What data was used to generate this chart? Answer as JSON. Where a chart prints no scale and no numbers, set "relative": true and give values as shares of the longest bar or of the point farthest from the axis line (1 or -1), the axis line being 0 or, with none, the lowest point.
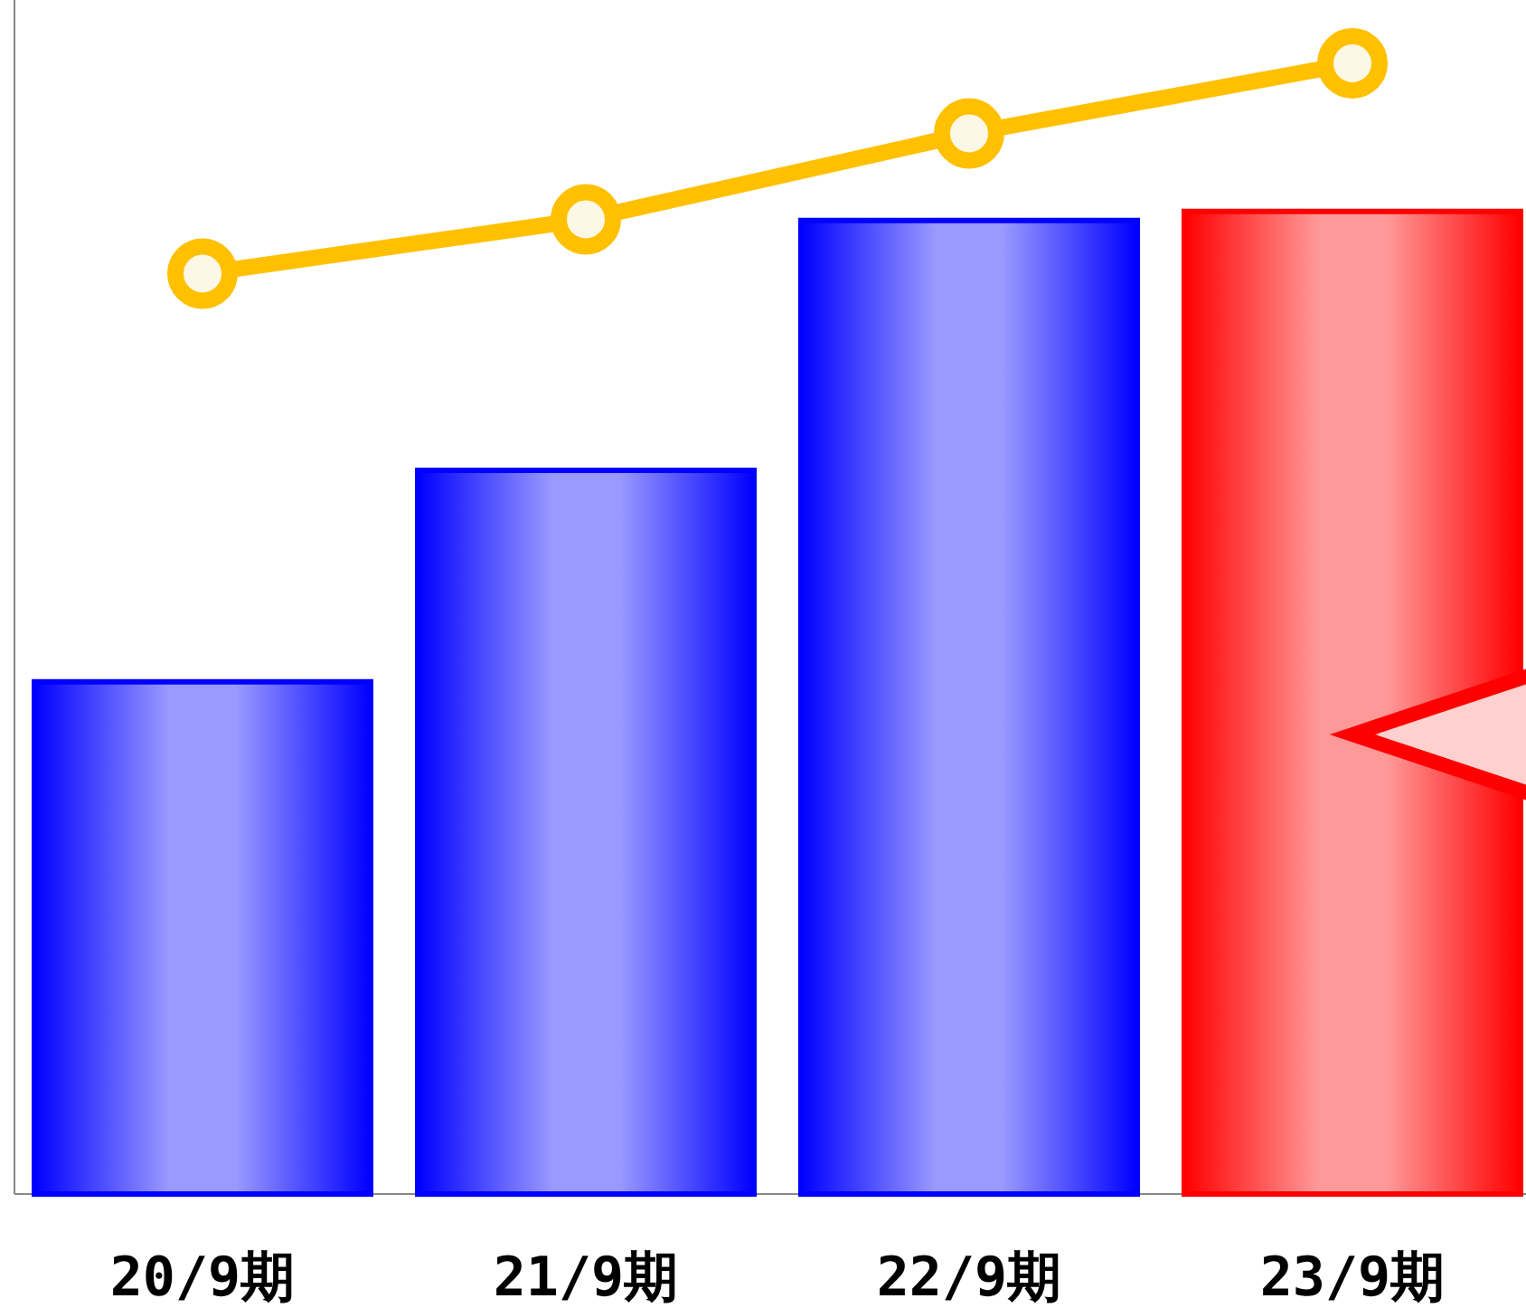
{
  "chart_data": {
    "type": "bar",
    "relative": true,
    "categories": [
      "20/9期",
      "21/9期",
      "22/9期",
      "23/9期"
    ],
    "series": [
      {
        "colors": [
          "#0000ff",
          "#0000ff",
          "#0000ff",
          "#ff0000"
        ],
        "values": [
          0.453,
          0.64,
          0.861,
          0.869
        ]
      },
      {
        "type": "line",
        "color": "#ffc000",
        "marker": "circle",
        "values": [
          0.814,
          0.862,
          0.938,
          1
        ]
      }
    ]
  }
}
